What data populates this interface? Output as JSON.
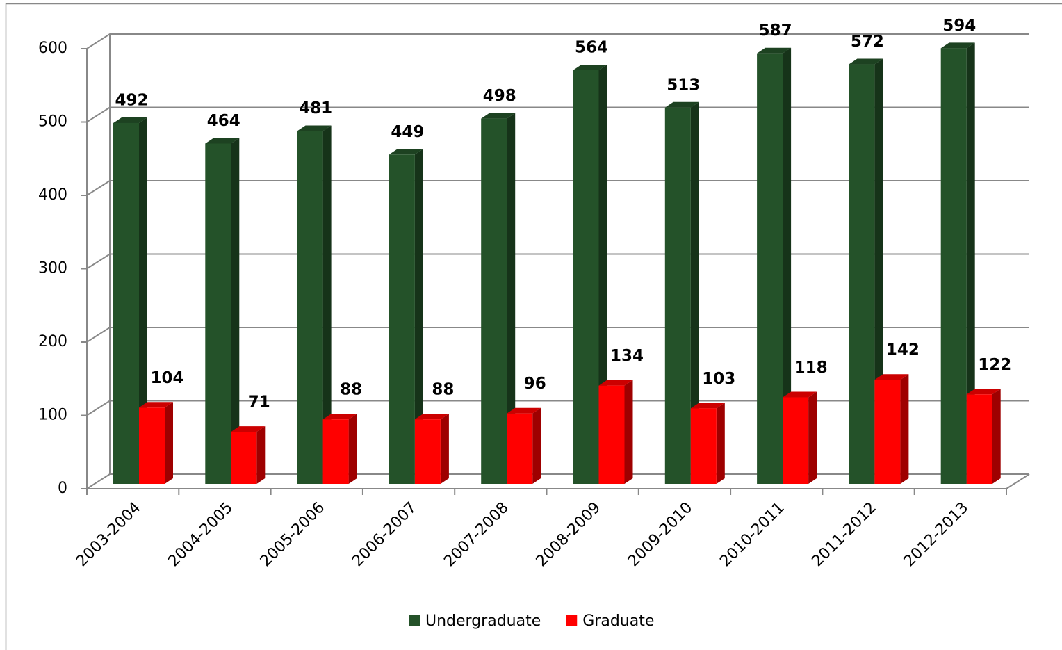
{
  "chart_data": {
    "type": "bar3d",
    "categories": [
      "2003-2004",
      "2004-2005",
      "2005-2006",
      "2006-2007",
      "2007-2008",
      "2008-2009",
      "2009-2010",
      "2010-2011",
      "2011-2012",
      "2012-2013"
    ],
    "series": [
      {
        "name": "Undergraduate",
        "color": "#245229",
        "values": [
          492,
          464,
          481,
          449,
          498,
          564,
          513,
          587,
          572,
          594
        ]
      },
      {
        "name": "Graduate",
        "color": "#ff0000",
        "values": [
          104,
          71,
          88,
          88,
          96,
          134,
          103,
          118,
          142,
          122
        ]
      }
    ],
    "ylim": [
      0,
      600
    ],
    "yticks": [
      0,
      100,
      200,
      300,
      400,
      500,
      600
    ],
    "grid": true,
    "legend": "bottom"
  }
}
